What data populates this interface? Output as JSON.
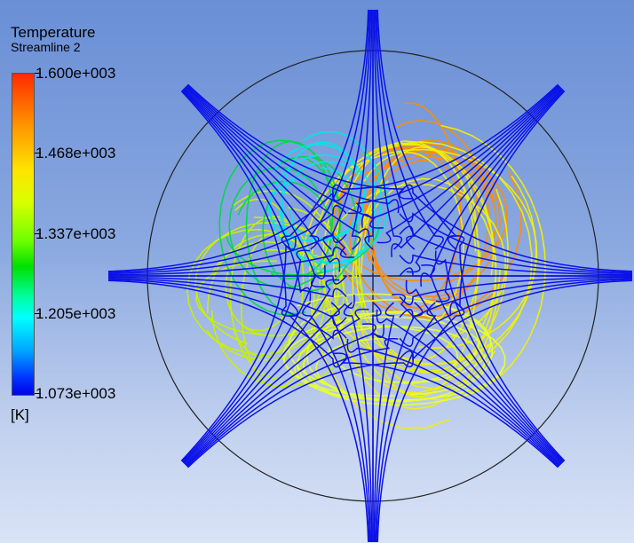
{
  "legend": {
    "title": "Temperature",
    "subtitle": "Streamline 2",
    "ticks": [
      "1.600e+003",
      "1.468e+003",
      "1.337e+003",
      "1.205e+003",
      "1.073e+003"
    ],
    "unit": "[K]"
  },
  "colors": {
    "background_top": "#6a8fd6",
    "background_bottom": "#d9e3f6",
    "jet_color": "#0a10e8",
    "hot": "#ff8c00",
    "warm": "#f0f000",
    "mid": "#00d84a",
    "cool": "#00e8e8"
  }
}
